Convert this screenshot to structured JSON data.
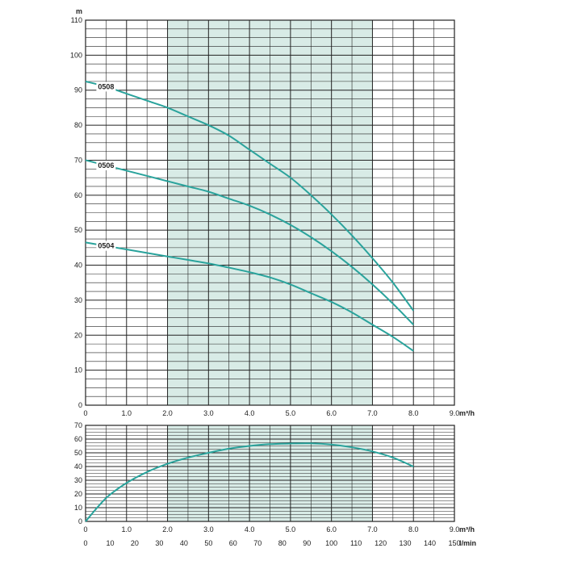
{
  "chart_data": [
    {
      "type": "line",
      "title": "",
      "ylabel": "m",
      "xlabel": "m³/h",
      "xlim": [
        0,
        9
      ],
      "ylim": [
        0,
        110
      ],
      "x_ticks": [
        0,
        1,
        2,
        3,
        4,
        5,
        6,
        7,
        8,
        9
      ],
      "x_tick_labels": [
        "0",
        "1.0",
        "2.0",
        "3.0",
        "4.0",
        "5.0",
        "6.0",
        "7.0",
        "8.0",
        "9.0"
      ],
      "y_ticks": [
        0,
        10,
        20,
        30,
        40,
        50,
        60,
        70,
        80,
        90,
        100,
        110
      ],
      "y_tick_labels": [
        "0",
        "10",
        "20",
        "30",
        "40",
        "50",
        "60",
        "70",
        "80",
        "90",
        "100",
        "110"
      ],
      "grid": true,
      "highlight_band": [
        2.0,
        7.0
      ],
      "series": [
        {
          "name": "0508",
          "x": [
            0,
            0.5,
            1,
            1.5,
            2,
            2.5,
            3,
            3.5,
            4,
            4.5,
            5,
            5.5,
            6,
            6.5,
            7,
            7.5,
            8
          ],
          "y": [
            92.5,
            91,
            89,
            87,
            85,
            82.5,
            80,
            77,
            73,
            69,
            65,
            60,
            54.5,
            48.5,
            42,
            35,
            27
          ]
        },
        {
          "name": "0506",
          "x": [
            0,
            0.5,
            1,
            1.5,
            2,
            2.5,
            3,
            3.5,
            4,
            4.5,
            5,
            5.5,
            6,
            6.5,
            7,
            7.5,
            8
          ],
          "y": [
            70,
            68.5,
            67,
            65.5,
            64,
            62.5,
            61,
            59,
            57,
            54.5,
            51.5,
            48,
            44,
            39.5,
            34.5,
            29,
            23
          ]
        },
        {
          "name": "0504",
          "x": [
            0,
            0.5,
            1,
            1.5,
            2,
            2.5,
            3,
            3.5,
            4,
            4.5,
            5,
            5.5,
            6,
            6.5,
            7,
            7.5,
            8
          ],
          "y": [
            46.5,
            45.5,
            44.5,
            43.5,
            42.5,
            41.5,
            40.5,
            39.3,
            38,
            36.5,
            34.5,
            32,
            29.5,
            26.5,
            23,
            19.5,
            15.5
          ]
        }
      ]
    },
    {
      "type": "line",
      "title": "",
      "xlabel": "m³/h",
      "x2label": "l/min",
      "xlim": [
        0,
        9
      ],
      "ylim": [
        0,
        70
      ],
      "x_ticks": [
        0,
        1,
        2,
        3,
        4,
        5,
        6,
        7,
        8,
        9
      ],
      "x_tick_labels": [
        "0",
        "1.0",
        "2.0",
        "3.0",
        "4.0",
        "5.0",
        "6.0",
        "7.0",
        "8.0",
        "9.0"
      ],
      "x2_ticks": [
        0,
        10,
        20,
        30,
        40,
        50,
        60,
        70,
        80,
        90,
        100,
        110,
        120,
        130,
        140,
        150
      ],
      "x2_tick_labels": [
        "0",
        "10",
        "20",
        "30",
        "40",
        "50",
        "60",
        "70",
        "80",
        "90",
        "100",
        "110",
        "120",
        "130",
        "140",
        "150"
      ],
      "y_ticks": [
        0,
        10,
        20,
        30,
        40,
        50,
        60,
        70
      ],
      "y_tick_labels": [
        "0",
        "10",
        "20",
        "30",
        "40",
        "50",
        "60",
        "70"
      ],
      "grid": true,
      "highlight_band": [
        2.0,
        7.0
      ],
      "series": [
        {
          "x": [
            0,
            0.5,
            1,
            1.5,
            2,
            2.5,
            3,
            3.5,
            4,
            4.5,
            5,
            5.5,
            6,
            6.5,
            7,
            7.5,
            8
          ],
          "y": [
            0,
            17,
            28,
            36,
            42,
            46.5,
            50,
            53,
            55,
            56.3,
            56.8,
            56.9,
            56,
            54,
            51,
            46.5,
            40
          ]
        }
      ]
    }
  ]
}
